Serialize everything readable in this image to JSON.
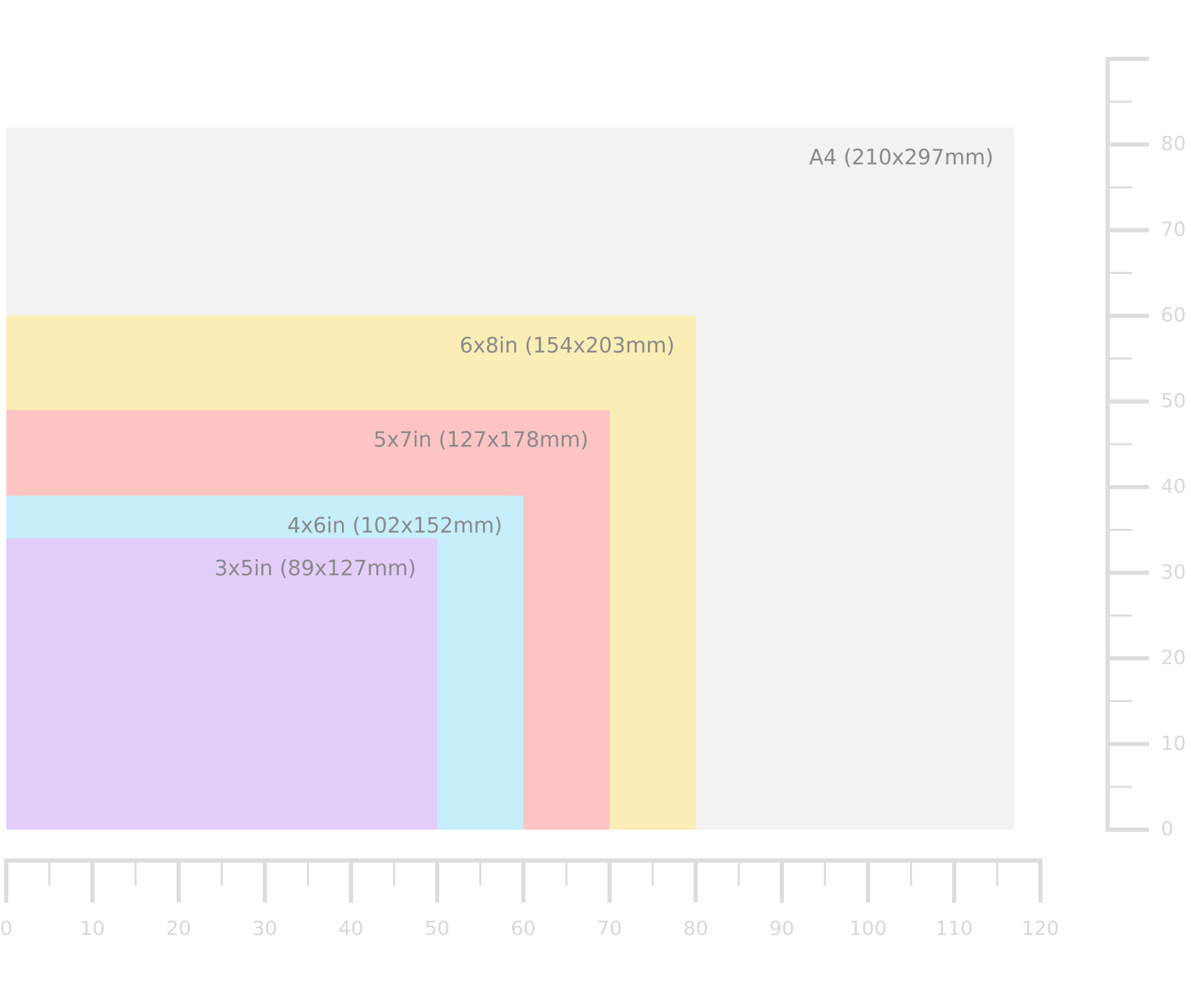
{
  "chart_data": {
    "type": "nested-rect",
    "rectangles": [
      {
        "label": "A4 (210x297mm)",
        "color": "#f2f2f2",
        "width": 117,
        "height": 82
      },
      {
        "label": "6x8in (154x203mm)",
        "color": "#faedb5",
        "width": 80,
        "height": 60
      },
      {
        "label": "5x7in (127x178mm)",
        "color": "#fec4c4",
        "width": 70,
        "height": 49
      },
      {
        "label": "4x6in (102x152mm)",
        "color": "#c6eefb",
        "width": 60,
        "height": 39
      },
      {
        "label": "3x5in (89x127mm)",
        "color": "#e2cdfb",
        "width": 50,
        "height": 34
      }
    ],
    "xlim": [
      0,
      120
    ],
    "xticks": [
      0,
      10,
      20,
      30,
      40,
      50,
      60,
      70,
      80,
      90,
      100,
      110,
      120
    ],
    "x_minor_ticks": [
      5,
      15,
      25,
      35,
      45,
      55,
      65,
      75,
      85,
      95,
      105,
      115
    ],
    "ylim": [
      0,
      90
    ],
    "yticks": [
      0,
      10,
      20,
      30,
      40,
      50,
      60,
      70,
      80,
      90
    ],
    "y_tick_labels_shown": [
      0,
      10,
      20,
      30,
      40,
      50,
      60,
      70,
      80
    ],
    "y_minor_ticks": [
      5,
      15,
      25,
      35,
      45,
      55,
      65,
      75,
      85
    ],
    "ruler_color": "#dddddd"
  }
}
